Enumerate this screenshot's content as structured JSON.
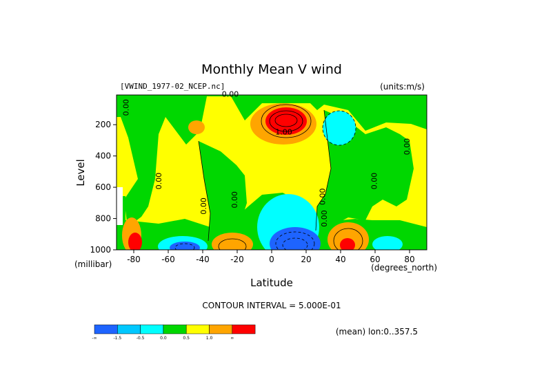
{
  "chart_data": {
    "type": "heatmap",
    "title": "Monthly Mean V wind",
    "dataset_label": "[VWIND_1977-02_NCEP.nc]",
    "units_label": "(units:m/s)",
    "xlabel": "Latitude",
    "ylabel": "Level",
    "x_unit_label": "(degrees_north)",
    "y_unit_label": "(millibar)",
    "xlim": [
      -90,
      90
    ],
    "ylim": [
      1000,
      10
    ],
    "x_ticks": [
      -80,
      -60,
      -40,
      -20,
      0,
      20,
      40,
      60,
      80
    ],
    "y_ticks": [
      200,
      400,
      600,
      800,
      1000
    ],
    "contour_interval_text": "CONTOUR INTERVAL = 5.000E-01",
    "contour_labels": [
      {
        "text": "0.00",
        "lat": -24,
        "lev": 20
      },
      {
        "text": "0.00",
        "lat": -83,
        "lev": 90
      },
      {
        "text": "1.00",
        "lat": 7,
        "lev": 262
      },
      {
        "text": "0.00",
        "lat": -64,
        "lev": 560
      },
      {
        "text": "0.00",
        "lat": -38,
        "lev": 720
      },
      {
        "text": "0.00",
        "lat": -20,
        "lev": 680
      },
      {
        "text": "0.00",
        "lat": 31,
        "lev": 660
      },
      {
        "text": "0.00",
        "lat": 32,
        "lev": 800
      },
      {
        "text": "0.00",
        "lat": 61,
        "lev": 560
      },
      {
        "text": "0.00",
        "lat": 80,
        "lev": 340
      }
    ],
    "footer_info": "(mean) lon:0..357.5",
    "colorbar": {
      "colors": [
        "#1e64ff",
        "#00c8ff",
        "#00ffff",
        "#00d700",
        "#ffff00",
        "#ffa500",
        "#ff0000"
      ],
      "labels": [
        "-∞",
        "-1.5",
        "-0.5",
        "0.0",
        "0.5",
        "1.0",
        "∞"
      ]
    }
  }
}
